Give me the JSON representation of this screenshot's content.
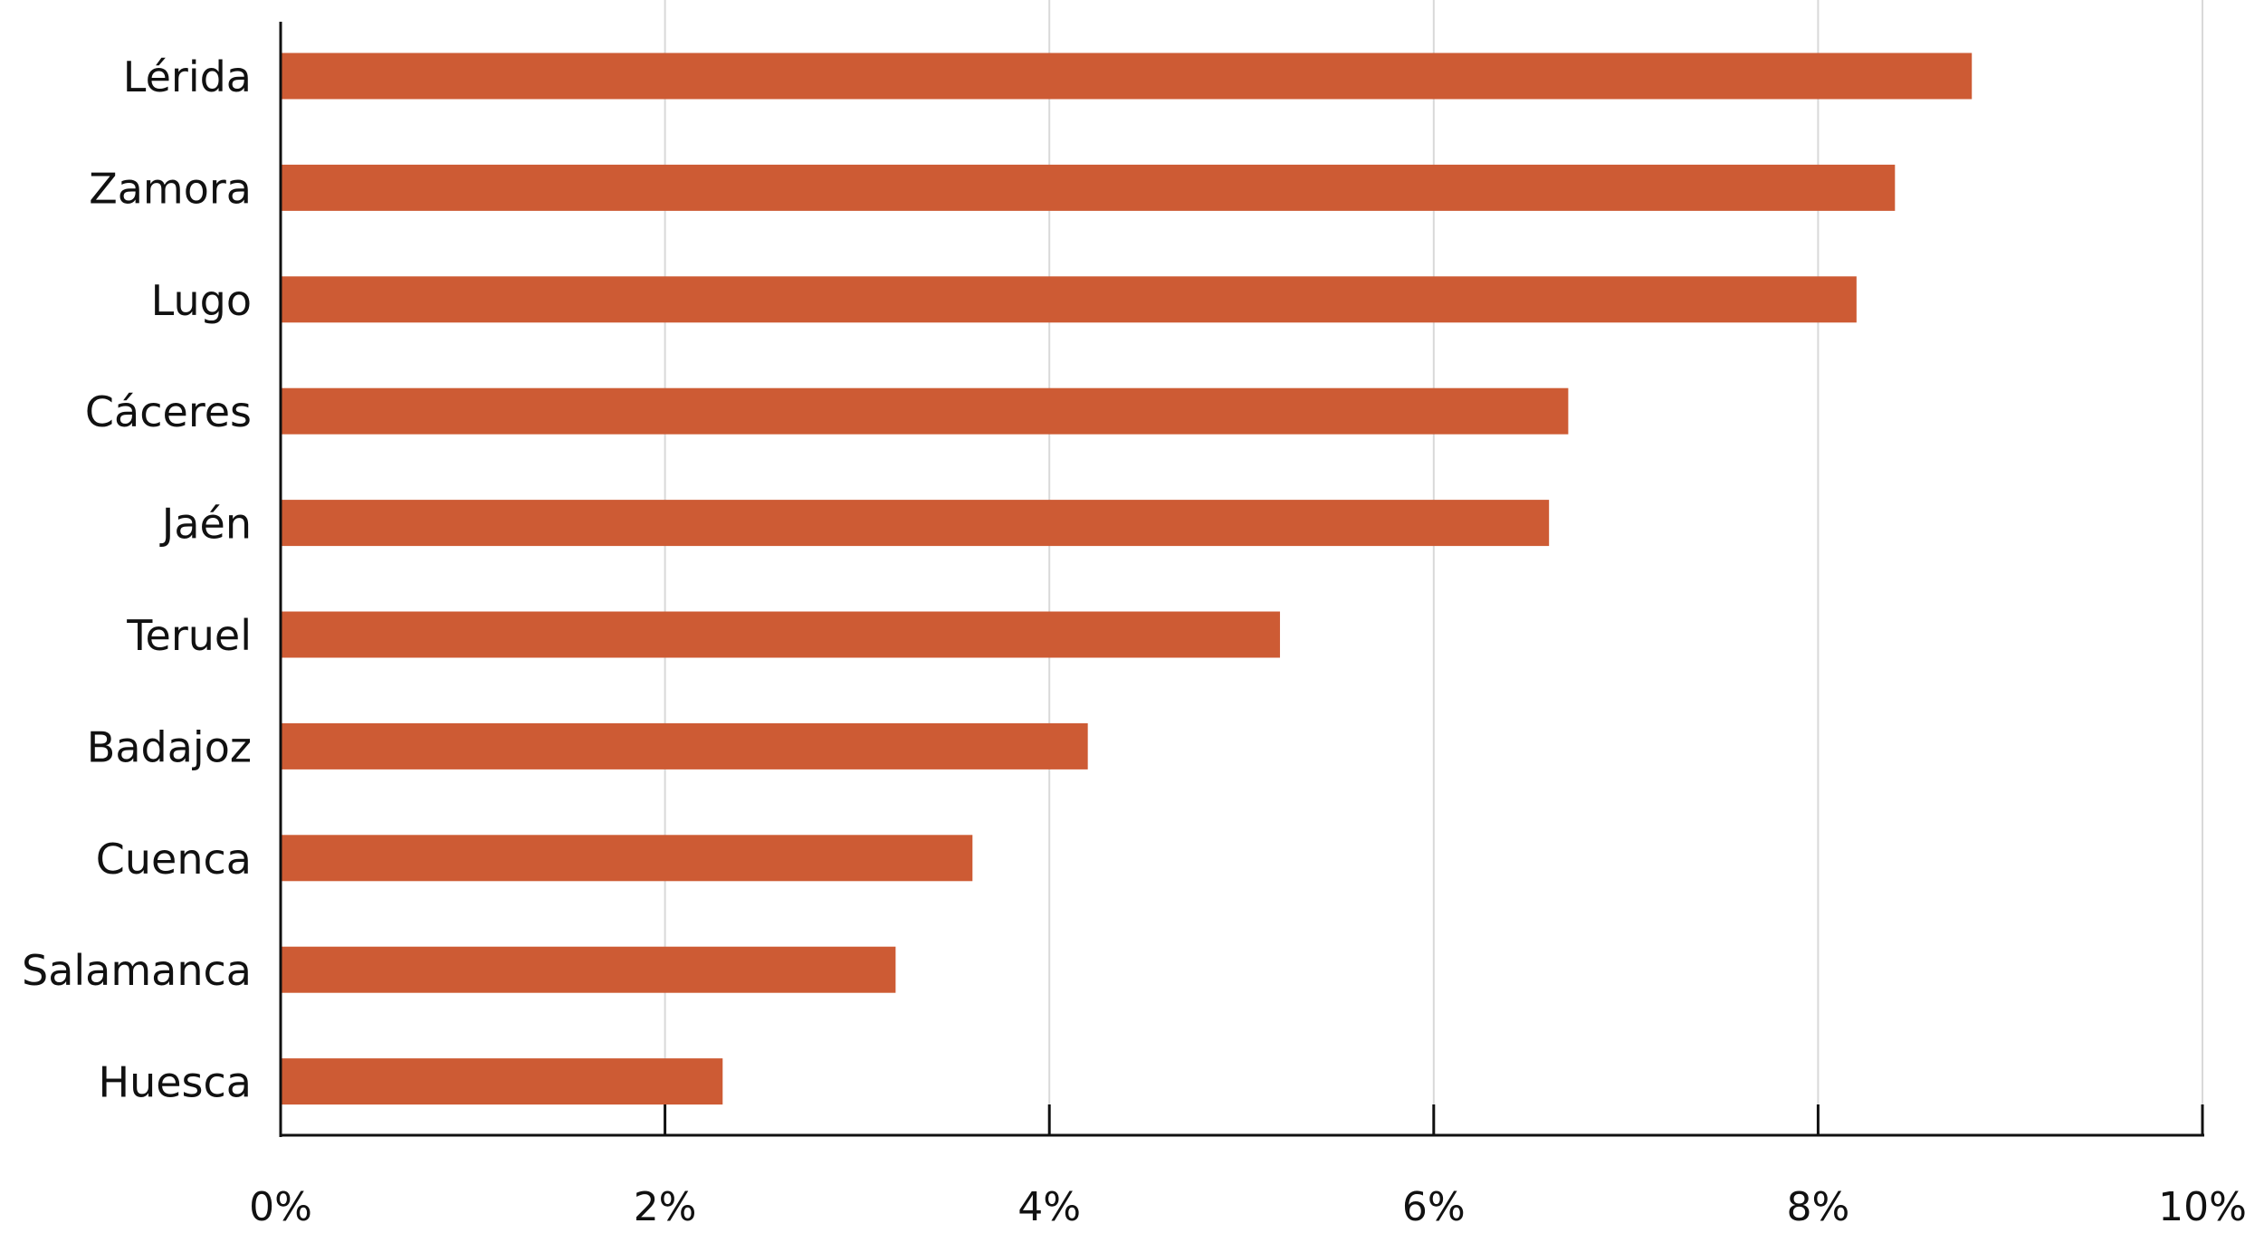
{
  "chart_data": {
    "type": "bar",
    "orientation": "horizontal",
    "title": "",
    "xlabel": "",
    "ylabel": "",
    "categories": [
      "Lérida",
      "Zamora",
      "Lugo",
      "Cáceres",
      "Jaén",
      "Teruel",
      "Badajoz",
      "Cuenca",
      "Salamanca",
      "Huesca"
    ],
    "values": [
      8.8,
      8.4,
      8.2,
      6.7,
      6.6,
      5.2,
      4.2,
      3.6,
      3.2,
      2.3
    ],
    "xlim": [
      0,
      10
    ],
    "xticks": [
      0,
      2,
      4,
      6,
      8,
      10
    ],
    "xtick_labels": [
      "0%",
      "2%",
      "4%",
      "6%",
      "8%",
      "10%"
    ],
    "grid": "vertical",
    "legend": "none",
    "bar_color": "#CD5B34"
  }
}
